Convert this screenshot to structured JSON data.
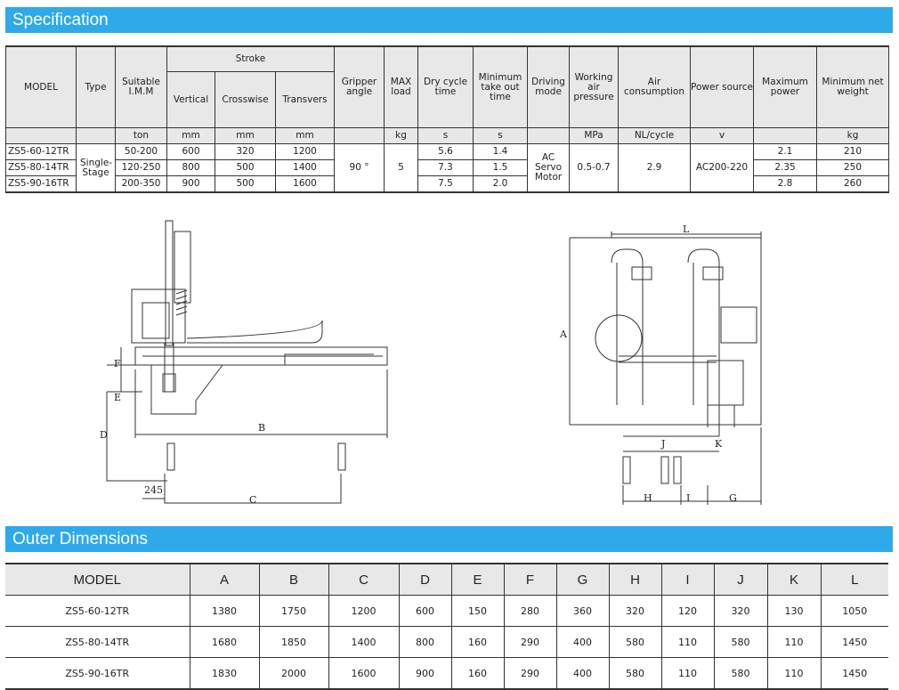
{
  "sections": {
    "spec_title": "Specification",
    "outer_title": "Outer Dimensions"
  },
  "spec": {
    "headers": {
      "model": "MODEL",
      "type": "Type",
      "imm": "Suitable I.M.M",
      "stroke": "Stroke",
      "vertical": "Vertical",
      "crosswise": "Crosswise",
      "transvers": "Transvers",
      "gripper": "Gripper angle",
      "max_load": "MAX load",
      "dry_cycle": "Dry cycle time",
      "min_takeout": "Minimum take out time",
      "driving": "Driving mode",
      "air_pressure": "Working air pressure",
      "air_consumption": "Air consumption",
      "power_source": "Power source",
      "max_power": "Maximum power",
      "net_weight": "Minimum net weight"
    },
    "units": {
      "imm": "ton",
      "vertical": "mm",
      "crosswise": "mm",
      "transvers": "mm",
      "max_load": "kg",
      "dry_cycle": "s",
      "min_takeout": "s",
      "air_pressure": "MPa",
      "air_consumption": "NL/cycle",
      "power_source": "v",
      "net_weight": "kg"
    },
    "shared": {
      "type": "Single-Stage",
      "gripper": "90 °",
      "max_load": "5",
      "driving": "AC Servo Motor",
      "air_pressure": "0.5-0.7",
      "air_consumption": "2.9",
      "power_source": "AC200-220"
    },
    "rows": [
      {
        "model": "ZS5-60-12TR",
        "imm": "50-200",
        "vertical": "600",
        "crosswise": "320",
        "transvers": "1200",
        "dry": "5.6",
        "takeout": "1.4",
        "power": "2.1",
        "weight": "210"
      },
      {
        "model": "ZS5-80-14TR",
        "imm": "120-250",
        "vertical": "800",
        "crosswise": "500",
        "transvers": "1400",
        "dry": "7.3",
        "takeout": "1.5",
        "power": "2.35",
        "weight": "250"
      },
      {
        "model": "ZS5-90-16TR",
        "imm": "200-350",
        "vertical": "900",
        "crosswise": "500",
        "transvers": "1600",
        "dry": "7.5",
        "takeout": "2.0",
        "power": "2.8",
        "weight": "260"
      }
    ]
  },
  "drawing": {
    "labels": {
      "A": "A",
      "B": "B",
      "C": "C",
      "D": "D",
      "E": "E",
      "F": "F",
      "G": "G",
      "H": "H",
      "I": "I",
      "J": "J",
      "K": "K",
      "L": "L",
      "offset": "245"
    }
  },
  "outer": {
    "headers": [
      "MODEL",
      "A",
      "B",
      "C",
      "D",
      "E",
      "F",
      "G",
      "H",
      "I",
      "J",
      "K",
      "L"
    ],
    "rows": [
      [
        "ZS5-60-12TR",
        "1380",
        "1750",
        "1200",
        "600",
        "150",
        "280",
        "360",
        "320",
        "120",
        "320",
        "130",
        "1050"
      ],
      [
        "ZS5-80-14TR",
        "1680",
        "1850",
        "1400",
        "800",
        "160",
        "290",
        "400",
        "580",
        "110",
        "580",
        "110",
        "1450"
      ],
      [
        "ZS5-90-16TR",
        "1830",
        "2000",
        "1600",
        "900",
        "160",
        "290",
        "400",
        "580",
        "110",
        "580",
        "110",
        "1450"
      ]
    ]
  }
}
